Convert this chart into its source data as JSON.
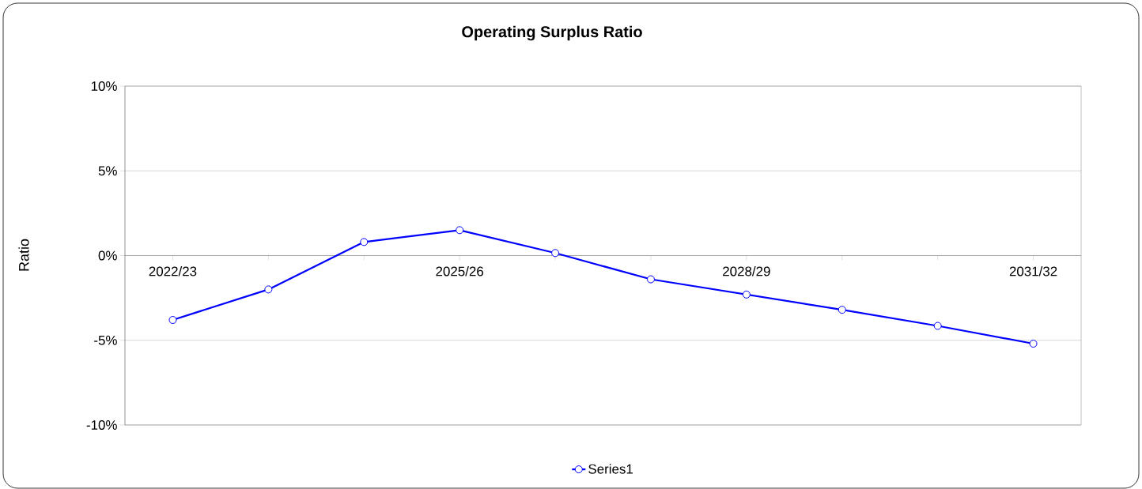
{
  "chart_data": {
    "type": "line",
    "title": "Operating Surplus Ratio",
    "ylabel": "Ratio",
    "categories": [
      "2022/23",
      null,
      null,
      "2025/26",
      null,
      null,
      "2028/29",
      null,
      null,
      "2031/32"
    ],
    "series": [
      {
        "name": "Series1",
        "color": "#0000ff",
        "values": [
          -3.8,
          -2.0,
          0.8,
          1.5,
          0.15,
          -1.4,
          -2.3,
          -3.2,
          -4.15,
          -5.2
        ]
      }
    ],
    "ylim": [
      -10,
      10
    ],
    "yticks": [
      {
        "value": -10,
        "label": "-10%"
      },
      {
        "value": -5,
        "label": "-5%"
      },
      {
        "value": 0,
        "label": "0%"
      },
      {
        "value": 5,
        "label": "5%"
      },
      {
        "value": 10,
        "label": "10%"
      }
    ],
    "grid": "y",
    "legend": "bottom",
    "marker": "circle",
    "line_style": "solid"
  }
}
